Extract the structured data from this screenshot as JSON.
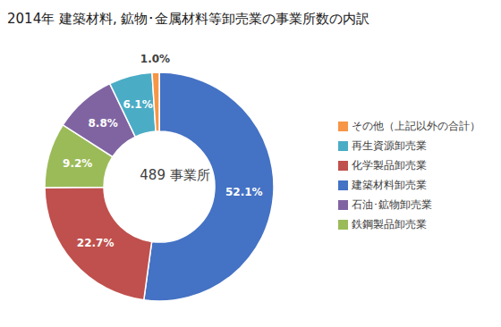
{
  "chart_data": {
    "type": "pie",
    "title": "2014年 建築材料, 鉱物･金属材料等卸売業の事業所数の内訳",
    "annotations": [
      "489 事業所"
    ],
    "categories": [
      "建築材料卸売業",
      "化学製品卸売業",
      "鉄鋼製品卸売業",
      "石油･鉱物卸売業",
      "再生資源卸売業",
      "その他（上記以外の合計）"
    ],
    "values": [
      52.1,
      22.7,
      9.2,
      8.8,
      6.1,
      1.0
    ],
    "value_labels": [
      "52.1%",
      "22.7%",
      "9.2%",
      "8.8%",
      "6.1%",
      "1.0%"
    ],
    "colors": [
      "#4472C4",
      "#C0504D",
      "#9BBB59",
      "#8064A2",
      "#4BACC6",
      "#F79646"
    ],
    "data_labels": true,
    "legend": "right"
  }
}
